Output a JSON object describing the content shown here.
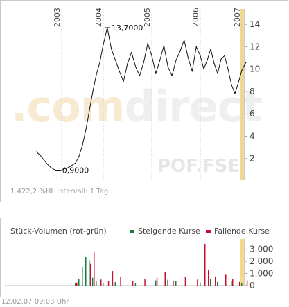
{
  "chart_data": [
    {
      "type": "line",
      "x_ticks": [
        "2003",
        "2004",
        "2005",
        "2006",
        "2007"
      ],
      "y_ticks": [
        2,
        4,
        6,
        8,
        10,
        12,
        14
      ],
      "ylim": [
        0,
        15
      ],
      "grid": false,
      "series": [
        {
          "x": [
            "2002-06",
            "2002-07",
            "2002-08",
            "2002-09",
            "2002-10",
            "2002-11",
            "2002-12",
            "2003-01",
            "2003-02",
            "2003-03",
            "2003-04",
            "2003-05",
            "2003-06",
            "2003-07",
            "2003-08",
            "2003-09",
            "2003-10",
            "2003-11",
            "2003-12",
            "2004-01",
            "2004-02",
            "2004-03",
            "2004-04",
            "2004-05",
            "2004-06",
            "2004-07",
            "2004-08",
            "2004-09",
            "2004-10",
            "2004-11",
            "2004-12",
            "2005-01",
            "2005-02",
            "2005-03",
            "2005-04",
            "2005-05",
            "2005-06",
            "2005-07",
            "2005-08",
            "2005-09",
            "2005-10",
            "2005-11",
            "2005-12",
            "2006-01",
            "2006-02",
            "2006-03",
            "2006-04",
            "2006-05",
            "2006-06",
            "2006-07",
            "2006-08",
            "2006-09",
            "2006-10",
            "2006-11",
            "2006-12",
            "2007-01",
            "2007-02"
          ],
          "values": [
            2.6,
            2.3,
            1.9,
            1.5,
            1.2,
            1.0,
            0.9,
            0.95,
            1.1,
            1.2,
            1.4,
            1.6,
            2.2,
            3.2,
            4.6,
            6.3,
            8.0,
            9.5,
            10.6,
            12.2,
            13.7,
            11.8,
            10.8,
            9.8,
            8.9,
            10.5,
            11.5,
            10.2,
            9.4,
            10.6,
            12.3,
            11.2,
            9.6,
            10.8,
            12.1,
            10.2,
            9.4,
            10.8,
            11.6,
            12.6,
            11.0,
            9.8,
            12.0,
            11.2,
            10.0,
            10.8,
            11.8,
            10.5,
            9.6,
            10.9,
            11.2,
            10.0,
            8.6,
            7.8,
            8.8,
            9.9,
            10.6
          ]
        }
      ],
      "annotations": [
        {
          "label": "13,7000",
          "x": "2004-02",
          "y": 13.7
        },
        {
          "label": "0,9000",
          "x": "2002-12",
          "y": 0.9
        }
      ]
    },
    {
      "type": "bar",
      "title": "Stück-Volumen (rot-grün)",
      "y_ticks": [
        0,
        1000,
        2000,
        3000
      ],
      "y_tick_labels": [
        "0",
        "1.000",
        "2.000",
        "3.000"
      ],
      "ylim": [
        0,
        3500
      ],
      "series": [
        {
          "name": "Steigende Kurse",
          "color": "#1a7a3a",
          "x": [
            "2003-05",
            "2003-06",
            "2003-07",
            "2003-08",
            "2003-09",
            "2003-10",
            "2003-11",
            "2004-01",
            "2004-04",
            "2004-09",
            "2005-02",
            "2005-05",
            "2005-07",
            "2006-01",
            "2006-04",
            "2006-06",
            "2006-10",
            "2007-01"
          ],
          "values": [
            180,
            550,
            1550,
            2350,
            2100,
            650,
            380,
            200,
            280,
            200,
            420,
            480,
            350,
            260,
            520,
            300,
            350,
            180
          ]
        },
        {
          "name": "Fallende Kurse",
          "color": "#c8102e",
          "x": [
            "2003-05",
            "2003-09",
            "2003-10",
            "2003-12",
            "2004-02",
            "2004-03",
            "2004-05",
            "2004-08",
            "2004-11",
            "2005-02",
            "2005-04",
            "2005-06",
            "2005-09",
            "2005-12",
            "2006-02",
            "2006-03",
            "2006-05",
            "2006-08",
            "2006-10",
            "2006-12",
            "2007-02"
          ],
          "values": [
            250,
            1800,
            2750,
            500,
            400,
            1200,
            700,
            350,
            550,
            650,
            1150,
            380,
            700,
            500,
            3450,
            1300,
            750,
            900,
            550,
            300,
            420
          ]
        }
      ]
    }
  ],
  "price_info": "1.422,2 %HL   Intervall: 1 Tag",
  "watermark": "comdirect",
  "symbol": "POF.FSE",
  "footer": "12.02.07   09:03 Uhr",
  "colors": {
    "price_line": "#111111",
    "today_marker": "#f5d98a",
    "watermark": "#f0f0f0",
    "up": "#1a7a3a",
    "down": "#c8102e"
  }
}
